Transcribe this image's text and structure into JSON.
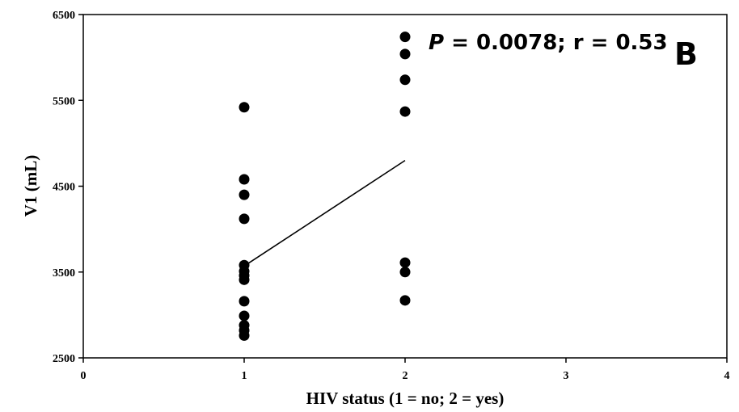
{
  "chart_data": {
    "type": "scatter",
    "xlabel": "HIV status (1 = no; 2 = yes)",
    "ylabel": "V1 (mL)",
    "xlim": [
      0,
      4
    ],
    "ylim": [
      2500,
      6500
    ],
    "x_ticks": [
      "0",
      "1",
      "2",
      "3",
      "4"
    ],
    "y_ticks": [
      "2500",
      "3500",
      "4500",
      "5500",
      "6500"
    ],
    "grid": false,
    "annotation": {
      "p_symbol": "P",
      "rest": " = 0.0078; r = 0.53"
    },
    "panel_label": "B",
    "points": [
      {
        "x": 1,
        "y": 5420
      },
      {
        "x": 1,
        "y": 4580
      },
      {
        "x": 1,
        "y": 4400
      },
      {
        "x": 1,
        "y": 4120
      },
      {
        "x": 1,
        "y": 3580
      },
      {
        "x": 1,
        "y": 3510
      },
      {
        "x": 1,
        "y": 3460
      },
      {
        "x": 1,
        "y": 3410
      },
      {
        "x": 1,
        "y": 3160
      },
      {
        "x": 1,
        "y": 2990
      },
      {
        "x": 1,
        "y": 2880
      },
      {
        "x": 1,
        "y": 2820
      },
      {
        "x": 1,
        "y": 2760
      },
      {
        "x": 2,
        "y": 6240
      },
      {
        "x": 2,
        "y": 6040
      },
      {
        "x": 2,
        "y": 5740
      },
      {
        "x": 2,
        "y": 5370
      },
      {
        "x": 2,
        "y": 3610
      },
      {
        "x": 2,
        "y": 3500
      },
      {
        "x": 2,
        "y": 3170
      }
    ],
    "regression_line": {
      "x": [
        1,
        2
      ],
      "y": [
        3570,
        4800
      ]
    }
  }
}
